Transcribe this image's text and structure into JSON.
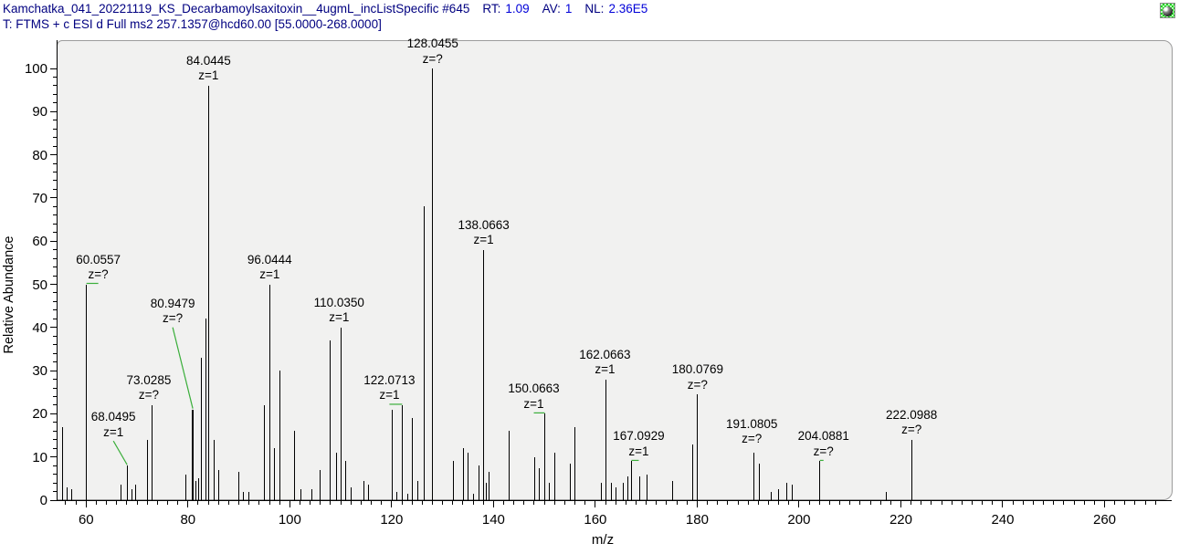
{
  "header": {
    "scan_info": "Kamchatka_041_20221119_KS_Decarbamoylsaxitoxin__4ugmL_incListSpecific #645",
    "rt_label": "RT:",
    "rt_value": "1.09",
    "av_label": "AV:",
    "av_value": "1",
    "nl_label": "NL:",
    "nl_value": "2.36E5",
    "filter_line": "T: FTMS + c ESI d Full ms2 257.1357@hcd60.00 [55.0000-268.0000]"
  },
  "icons": {
    "top_right": "pin-globe-icon"
  },
  "colors": {
    "header_label": "#000080",
    "header_value": "#0000d8",
    "plot_background": "#f1f1f0",
    "panel_border": "#9c9c9c",
    "peak": "#000000",
    "leader": "#3aae3a"
  },
  "chart_data": {
    "type": "bar",
    "subtype": "mass-spectrum-stick-plot",
    "xlabel": "m/z",
    "ylabel": "Relative Abundance",
    "xlim": [
      55,
      272
    ],
    "ylim": [
      0,
      100
    ],
    "x_major_ticks": [
      60,
      80,
      100,
      120,
      140,
      160,
      180,
      200,
      220,
      240,
      260
    ],
    "x_minor_step": 2,
    "y_major_ticks": [
      0,
      10,
      20,
      30,
      40,
      50,
      60,
      70,
      80,
      90,
      100
    ],
    "y_minor_step": 2,
    "legend": null,
    "grid": false,
    "peaks": [
      {
        "mz": 55.3,
        "i": 17
      },
      {
        "mz": 56.2,
        "i": 3
      },
      {
        "mz": 57.1,
        "i": 2.5
      },
      {
        "mz": 60.0557,
        "i": 50,
        "label": "60.0557",
        "z": "z=?",
        "dx": 13,
        "dy": 0,
        "leader": true
      },
      {
        "mz": 66.8,
        "i": 3.5
      },
      {
        "mz": 68.0495,
        "i": 8,
        "label": "68.0495",
        "z": "z=1",
        "dx": -15,
        "dy": -26,
        "leader": true
      },
      {
        "mz": 69.0,
        "i": 2.5
      },
      {
        "mz": 69.7,
        "i": 3.5
      },
      {
        "mz": 72.05,
        "i": 14
      },
      {
        "mz": 73.0285,
        "i": 22,
        "label": "73.0285",
        "z": "z=?",
        "dx": -4,
        "dy": 0,
        "leader": false
      },
      {
        "mz": 79.5,
        "i": 6
      },
      {
        "mz": 80.9479,
        "i": 21,
        "label": "80.9479",
        "z": "z=?",
        "dx": -22,
        "dy": -89,
        "leader": true,
        "w": 2
      },
      {
        "mz": 81.5,
        "i": 4.5
      },
      {
        "mz": 82.1,
        "i": 5
      },
      {
        "mz": 82.6,
        "i": 33
      },
      {
        "mz": 83.5,
        "i": 42
      },
      {
        "mz": 84.0445,
        "i": 96,
        "label": "84.0445",
        "z": "z=1",
        "dx": 0,
        "dy": 0,
        "leader": false
      },
      {
        "mz": 85.2,
        "i": 14
      },
      {
        "mz": 86.1,
        "i": 7
      },
      {
        "mz": 90.0,
        "i": 6.5
      },
      {
        "mz": 90.9,
        "i": 2
      },
      {
        "mz": 92.0,
        "i": 2
      },
      {
        "mz": 95.05,
        "i": 22
      },
      {
        "mz": 96.0444,
        "i": 50,
        "label": "96.0444",
        "z": "z=1",
        "dx": 0,
        "dy": 0,
        "leader": false
      },
      {
        "mz": 97.05,
        "i": 12
      },
      {
        "mz": 98.05,
        "i": 30
      },
      {
        "mz": 101.0,
        "i": 16
      },
      {
        "mz": 102.2,
        "i": 2.5
      },
      {
        "mz": 104.3,
        "i": 2.5
      },
      {
        "mz": 106.0,
        "i": 7
      },
      {
        "mz": 108.0,
        "i": 37
      },
      {
        "mz": 109.1,
        "i": 11
      },
      {
        "mz": 110.035,
        "i": 40,
        "label": "110.0350",
        "z": "z=1",
        "dx": -2,
        "dy": 0,
        "leader": false
      },
      {
        "mz": 111.05,
        "i": 9
      },
      {
        "mz": 112.0,
        "i": 3
      },
      {
        "mz": 114.5,
        "i": 4.5
      },
      {
        "mz": 115.5,
        "i": 3.5
      },
      {
        "mz": 120.05,
        "i": 21
      },
      {
        "mz": 121.1,
        "i": 2
      },
      {
        "mz": 122.0713,
        "i": 22,
        "label": "122.0713",
        "z": "z=1",
        "dx": -14,
        "dy": 0,
        "leader": true
      },
      {
        "mz": 123.1,
        "i": 1.5
      },
      {
        "mz": 124.05,
        "i": 19
      },
      {
        "mz": 125.1,
        "i": 4.5
      },
      {
        "mz": 126.4,
        "i": 68
      },
      {
        "mz": 128.0455,
        "i": 100,
        "label": "128.0455",
        "z": "z=?",
        "dx": 0,
        "dy": 0,
        "leader": false
      },
      {
        "mz": 132.1,
        "i": 9
      },
      {
        "mz": 134.1,
        "i": 12
      },
      {
        "mz": 135.05,
        "i": 11
      },
      {
        "mz": 136.05,
        "i": 1.5
      },
      {
        "mz": 137.1,
        "i": 8
      },
      {
        "mz": 138.0663,
        "i": 58,
        "label": "138.0663",
        "z": "z=1",
        "dx": 0,
        "dy": 0,
        "leader": false
      },
      {
        "mz": 138.6,
        "i": 4
      },
      {
        "mz": 139.15,
        "i": 6.5
      },
      {
        "mz": 143.1,
        "i": 16
      },
      {
        "mz": 148.05,
        "i": 10
      },
      {
        "mz": 149.05,
        "i": 7.5
      },
      {
        "mz": 150.0663,
        "i": 20,
        "label": "150.0663",
        "z": "z=1",
        "dx": -12,
        "dy": 0,
        "leader": true
      },
      {
        "mz": 151.05,
        "i": 4
      },
      {
        "mz": 152.05,
        "i": 11
      },
      {
        "mz": 155.05,
        "i": 8.5
      },
      {
        "mz": 156.05,
        "i": 17
      },
      {
        "mz": 161.1,
        "i": 4
      },
      {
        "mz": 162.0663,
        "i": 28,
        "label": "162.0663",
        "z": "z=1",
        "dx": -1,
        "dy": 0,
        "leader": false
      },
      {
        "mz": 163.1,
        "i": 4
      },
      {
        "mz": 164.1,
        "i": 3
      },
      {
        "mz": 165.5,
        "i": 4
      },
      {
        "mz": 166.4,
        "i": 5.5
      },
      {
        "mz": 167.0929,
        "i": 9,
        "label": "167.0929",
        "z": "z=1",
        "dx": 8,
        "dy": 0,
        "leader": true
      },
      {
        "mz": 168.8,
        "i": 5.5
      },
      {
        "mz": 170.1,
        "i": 6
      },
      {
        "mz": 175.1,
        "i": 4.5
      },
      {
        "mz": 179.1,
        "i": 13
      },
      {
        "mz": 180.0769,
        "i": 24.5,
        "label": "180.0769",
        "z": "z=?",
        "dx": 0,
        "dy": 0,
        "leader": false
      },
      {
        "mz": 191.0805,
        "i": 11,
        "label": "191.0805",
        "z": "z=?",
        "dx": -2,
        "dy": -4,
        "leader": false
      },
      {
        "mz": 192.15,
        "i": 8.5
      },
      {
        "mz": 194.6,
        "i": 2
      },
      {
        "mz": 195.9,
        "i": 2.5
      },
      {
        "mz": 197.6,
        "i": 4
      },
      {
        "mz": 198.6,
        "i": 3.5
      },
      {
        "mz": 204.0881,
        "i": 9,
        "label": "204.0881",
        "z": "z=?",
        "dx": 4,
        "dy": 0,
        "leader": true
      },
      {
        "mz": 217.1,
        "i": 2
      },
      {
        "mz": 222.0988,
        "i": 14,
        "label": "222.0988",
        "z": "z=?",
        "dx": 0,
        "dy": 0,
        "leader": false
      }
    ]
  }
}
